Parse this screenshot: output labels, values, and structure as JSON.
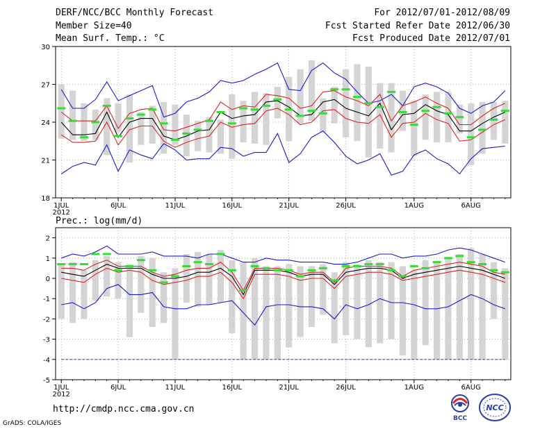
{
  "header": {
    "title": "DERF/NCC/BCC Monthly Forecast",
    "member_size": "Member Size=40",
    "period": "For 2012/07/01-2012/08/09",
    "started": "Fcst Started Refer Date 2012/06/30",
    "produced": "Fcst Produced Date 2012/07/01"
  },
  "footer": {
    "url": "http://cmdp.ncc.cma.gov.cn",
    "grads": "GrADS: COLA/IGES"
  },
  "logos": {
    "bcc": "BCC",
    "ncc": "NCC"
  },
  "colors": {
    "ensemble_bar": "#d4d4d4",
    "observed": "#33dd33",
    "band": "#dd2222",
    "envelope": "#1a1acc",
    "mean": "#000000"
  },
  "chart_data": [
    {
      "type": "line",
      "title": "Mean Surf. Temp.: °C",
      "ylim": [
        18,
        30
      ],
      "yticks": [
        18,
        21,
        24,
        27,
        30
      ],
      "xlim": [
        0.5,
        40.5
      ],
      "xticks": [
        {
          "day": 1,
          "label": "1JUL"
        },
        {
          "day": 6,
          "label": "6JUL"
        },
        {
          "day": 11,
          "label": "11JUL"
        },
        {
          "day": 16,
          "label": "16JUL"
        },
        {
          "day": 21,
          "label": "21JUL"
        },
        {
          "day": 26,
          "label": "26JUL"
        },
        {
          "day": 32,
          "label": "1AUG"
        },
        {
          "day": 37,
          "label": "6AUG"
        }
      ],
      "year_label": "2012",
      "days": [
        1,
        2,
        3,
        4,
        5,
        6,
        7,
        8,
        9,
        10,
        11,
        12,
        13,
        14,
        15,
        16,
        17,
        18,
        19,
        20,
        21,
        22,
        23,
        24,
        25,
        26,
        27,
        28,
        29,
        30,
        31,
        32,
        33,
        34,
        35,
        36,
        37,
        38,
        39,
        40
      ],
      "bar_low": [
        22.7,
        22.6,
        22.5,
        22.6,
        21.4,
        23.2,
        20.8,
        22.2,
        22.3,
        21.5,
        22.2,
        21.3,
        21.7,
        21.6,
        21.5,
        21.1,
        22.4,
        22.3,
        22.2,
        24.3,
        22.5,
        23.9,
        24.1,
        23.2,
        23.9,
        22.8,
        22.5,
        21.2,
        21.9,
        21.6,
        23.3,
        21.3,
        22.6,
        22.4,
        22.4,
        23.1,
        20.6,
        21.5,
        22.6,
        22.3
      ],
      "bar_high": [
        27.0,
        26.5,
        25.5,
        25.0,
        25.9,
        25.5,
        26.2,
        24.8,
        25.3,
        25.6,
        25.4,
        24.6,
        24.1,
        24.4,
        24.2,
        26.2,
        25.7,
        26.4,
        26.3,
        26.8,
        27.6,
        28.2,
        28.9,
        25.9,
        26.8,
        28.2,
        28.6,
        28.4,
        27.1,
        27.1,
        26.5,
        25.7,
        26.2,
        26.4,
        26.4,
        25.4,
        25.5,
        25.6,
        25.6,
        25.7
      ],
      "observed": [
        25.1,
        24.1,
        22.8,
        24.0,
        25.3,
        22.9,
        24.3,
        24.6,
        25.0,
        23.9,
        22.6,
        23.1,
        23.4,
        24.1,
        24.8,
        23.9,
        25.1,
        25.0,
        25.3,
        25.8,
        25.0,
        24.5,
        24.9,
        24.7,
        26.6,
        26.6,
        26.0,
        25.5,
        25.2,
        26.4,
        24.8,
        23.8,
        24.9,
        25.2,
        24.7,
        24.4,
        22.8,
        23.4,
        24.2,
        24.9
      ],
      "series": [
        {
          "name": "ens_max",
          "role": "envelope",
          "values": [
            26.6,
            25.1,
            25.1,
            25.8,
            27.2,
            25.7,
            26.1,
            26.5,
            26.9,
            24.4,
            24.7,
            25.6,
            25.9,
            26.4,
            27.3,
            27.1,
            27.3,
            27.8,
            28.2,
            28.7,
            26.6,
            26.5,
            28.1,
            28.7,
            27.9,
            27.4,
            26.4,
            25.5,
            25.7,
            26.2,
            25.3,
            26.8,
            27.1,
            26.8,
            26.3,
            25.1,
            24.7,
            25.3,
            25.6,
            26.5
          ]
        },
        {
          "name": "upper_band",
          "role": "band",
          "values": [
            24.8,
            24.1,
            24.1,
            24.1,
            25.3,
            23.5,
            24.7,
            25.0,
            25.1,
            23.4,
            23.3,
            23.6,
            23.9,
            24.2,
            25.6,
            25.0,
            25.3,
            25.2,
            26.2,
            26.1,
            25.9,
            25.1,
            25.3,
            26.4,
            26.5,
            26.0,
            25.7,
            25.3,
            26.2,
            24.1,
            25.3,
            25.6,
            26.0,
            25.5,
            25.1,
            23.8,
            23.8,
            24.5,
            25.1,
            25.5
          ]
        },
        {
          "name": "ensemble_mean",
          "role": "mean",
          "values": [
            24.0,
            23.0,
            23.0,
            23.1,
            24.8,
            22.8,
            24.0,
            24.3,
            24.3,
            22.9,
            22.6,
            22.9,
            23.3,
            23.4,
            24.8,
            24.3,
            24.5,
            24.6,
            25.6,
            25.7,
            25.2,
            24.5,
            24.6,
            25.6,
            25.8,
            25.1,
            24.8,
            24.5,
            25.5,
            23.4,
            24.6,
            24.7,
            25.4,
            24.9,
            24.6,
            23.3,
            23.3,
            23.9,
            24.4,
            24.8
          ]
        },
        {
          "name": "lower_band",
          "role": "band",
          "values": [
            23.0,
            22.4,
            22.4,
            22.5,
            24.0,
            22.2,
            23.4,
            23.7,
            23.7,
            22.5,
            22.0,
            22.4,
            22.7,
            22.9,
            24.0,
            23.6,
            23.8,
            23.9,
            24.9,
            25.1,
            24.6,
            23.8,
            24.0,
            24.9,
            25.0,
            24.3,
            24.0,
            23.9,
            24.6,
            22.8,
            23.9,
            24.0,
            24.7,
            24.2,
            23.9,
            22.5,
            22.6,
            23.2,
            23.8,
            24.2
          ]
        },
        {
          "name": "ens_min",
          "role": "envelope",
          "values": [
            19.9,
            20.5,
            20.8,
            20.6,
            22.2,
            20.1,
            21.8,
            21.4,
            21.1,
            22.3,
            21.8,
            21.0,
            21.1,
            21.1,
            22.0,
            21.9,
            21.3,
            21.6,
            21.6,
            23.1,
            20.8,
            21.5,
            22.8,
            23.3,
            22.4,
            21.3,
            20.7,
            21.0,
            21.5,
            19.8,
            20.1,
            21.4,
            21.8,
            21.1,
            20.7,
            19.9,
            21.1,
            21.9,
            22.0,
            22.1
          ]
        }
      ]
    },
    {
      "type": "line",
      "title": "Prec.: log(mm/d)",
      "ylim": [
        -5,
        2.5
      ],
      "yticks": [
        -5,
        -4,
        -3,
        -2,
        -1,
        0,
        1,
        2
      ],
      "xlim": [
        0.5,
        40.5
      ],
      "xticks": [
        {
          "day": 1,
          "label": "1JUL"
        },
        {
          "day": 6,
          "label": "6JUL"
        },
        {
          "day": 11,
          "label": "11JUL"
        },
        {
          "day": 16,
          "label": "16JUL"
        },
        {
          "day": 21,
          "label": "21JUL"
        },
        {
          "day": 26,
          "label": "26JUL"
        },
        {
          "day": 32,
          "label": "1AUG"
        },
        {
          "day": 37,
          "label": "6AUG"
        }
      ],
      "year_label": "2012",
      "days": [
        1,
        2,
        3,
        4,
        5,
        6,
        7,
        8,
        9,
        10,
        11,
        12,
        13,
        14,
        15,
        16,
        17,
        18,
        19,
        20,
        21,
        22,
        23,
        24,
        25,
        26,
        27,
        28,
        29,
        30,
        31,
        32,
        33,
        34,
        35,
        36,
        37,
        38,
        39,
        40
      ],
      "bar_low": [
        -2.0,
        -2.2,
        -2.0,
        -1.1,
        -0.9,
        -1.0,
        -2.9,
        -1.7,
        -2.4,
        -2.2,
        -4.0,
        -1.2,
        -1.4,
        -1.3,
        -1.2,
        -2.7,
        -4.0,
        -4.0,
        -4.0,
        -4.0,
        -3.4,
        -2.9,
        -2.4,
        -1.8,
        -3.2,
        -2.8,
        -3.0,
        -3.4,
        -3.2,
        -3.0,
        -3.8,
        -4.0,
        -3.3,
        -4.0,
        -4.0,
        -4.0,
        -4.0,
        -4.0,
        -2.0,
        -4.0
      ],
      "bar_high": [
        0.7,
        0.8,
        0.4,
        0.9,
        1.1,
        0.8,
        0.7,
        1.1,
        1.0,
        0.3,
        0.5,
        1.2,
        1.3,
        1.2,
        1.4,
        0.9,
        0.8,
        1.0,
        0.6,
        0.6,
        0.7,
        0.6,
        0.6,
        0.7,
        0.3,
        0.8,
        0.7,
        0.9,
        0.8,
        0.8,
        0.6,
        0.4,
        0.9,
        0.8,
        1.0,
        1.2,
        1.5,
        1.2,
        0.8,
        0.5
      ],
      "observed": [
        0.7,
        0.7,
        0.7,
        1.2,
        1.2,
        0.4,
        0.6,
        0.9,
        0.4,
        -0.2,
        0.1,
        0.6,
        0.8,
        0.7,
        1.2,
        0.4,
        -0.6,
        0.6,
        0.5,
        0.4,
        0.4,
        0.1,
        0.4,
        0.5,
        -0.1,
        0.6,
        0.6,
        0.7,
        0.7,
        0.4,
        0.1,
        0.6,
        0.5,
        0.8,
        1.0,
        1.1,
        0.8,
        0.7,
        0.4,
        0.3
      ],
      "series": [
        {
          "name": "ens_max",
          "role": "envelope",
          "values": [
            1.0,
            1.2,
            1.1,
            1.3,
            1.6,
            1.2,
            1.2,
            1.2,
            1.3,
            1.1,
            1.1,
            1.1,
            1.0,
            1.2,
            1.2,
            1.0,
            0.8,
            0.8,
            1.0,
            0.9,
            0.9,
            0.8,
            0.8,
            0.8,
            0.7,
            0.7,
            0.8,
            1.0,
            1.2,
            1.2,
            1.0,
            1.1,
            1.1,
            1.2,
            1.4,
            1.5,
            1.4,
            1.2,
            1.0,
            0.8
          ]
        },
        {
          "name": "upper_band",
          "role": "band",
          "values": [
            0.5,
            0.5,
            0.4,
            0.7,
            0.9,
            0.6,
            0.6,
            0.6,
            0.3,
            0.1,
            0.2,
            0.4,
            0.5,
            0.5,
            0.8,
            0.3,
            -0.6,
            0.5,
            0.5,
            0.5,
            0.4,
            0.2,
            0.3,
            0.3,
            -0.2,
            0.5,
            0.6,
            0.6,
            0.6,
            0.5,
            0.1,
            0.4,
            0.5,
            0.6,
            0.7,
            0.8,
            0.7,
            0.6,
            0.3,
            0.2
          ]
        },
        {
          "name": "ensemble_mean",
          "role": "mean",
          "values": [
            0.3,
            0.2,
            0.1,
            0.4,
            0.7,
            0.5,
            0.5,
            0.5,
            0.2,
            0.0,
            0.0,
            0.1,
            0.3,
            0.3,
            0.5,
            0.1,
            -0.8,
            0.4,
            0.4,
            0.4,
            0.3,
            0.1,
            0.2,
            0.2,
            -0.3,
            0.3,
            0.4,
            0.5,
            0.5,
            0.4,
            0.0,
            0.2,
            0.3,
            0.4,
            0.5,
            0.6,
            0.5,
            0.4,
            0.2,
            0.0
          ]
        },
        {
          "name": "lower_band",
          "role": "band",
          "values": [
            0.0,
            -0.1,
            -0.2,
            0.2,
            0.5,
            0.3,
            0.4,
            0.3,
            -0.1,
            -0.3,
            -0.2,
            -0.1,
            0.1,
            0.1,
            0.3,
            -0.2,
            -1.0,
            0.2,
            0.2,
            0.2,
            0.1,
            -0.1,
            0.0,
            0.0,
            -0.5,
            0.1,
            0.2,
            0.3,
            0.3,
            0.2,
            -0.1,
            0.0,
            0.1,
            0.2,
            0.3,
            0.4,
            0.3,
            0.2,
            0.0,
            -0.2
          ]
        },
        {
          "name": "ens_min",
          "role": "envelope",
          "values": [
            -1.3,
            -1.2,
            -1.5,
            -1.2,
            -0.5,
            -0.3,
            -0.8,
            -0.8,
            -0.7,
            -1.4,
            -1.5,
            -1.5,
            -1.3,
            -1.3,
            -1.2,
            -1.1,
            -1.7,
            -2.3,
            -1.4,
            -1.3,
            -1.3,
            -1.4,
            -1.4,
            -1.5,
            -2.0,
            -1.3,
            -1.5,
            -1.3,
            -1.0,
            -1.2,
            -1.2,
            -1.3,
            -1.5,
            -1.5,
            -1.4,
            -1.1,
            -0.8,
            -1.0,
            -1.3,
            -1.5
          ]
        },
        {
          "name": "floor",
          "role": "floor",
          "values": [
            -4,
            -4,
            -4,
            -4,
            -4,
            -4,
            -4,
            -4,
            -4,
            -4,
            -4,
            -4,
            -4,
            -4,
            -4,
            -4,
            -4,
            -4,
            -4,
            -4,
            -4,
            -4,
            -4,
            -4,
            -4,
            -4,
            -4,
            -4,
            -4,
            -4,
            -4,
            -4,
            -4,
            -4,
            -4,
            -4,
            -4,
            -4,
            -4,
            -4
          ]
        }
      ]
    }
  ]
}
